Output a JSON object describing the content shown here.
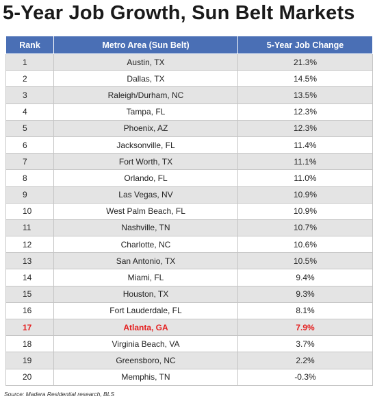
{
  "title": "5-Year Job Growth, Sun Belt Markets",
  "source": "Source: Madera Residential research, BLS",
  "colors": {
    "header_bg": "#4a6fb5",
    "row_shade": "#e4e4e4",
    "highlight": "#e41e1e"
  },
  "chart_data": {
    "type": "table",
    "title": "5-Year Job Growth, Sun Belt Markets",
    "columns": [
      "Rank",
      "Metro Area (Sun Belt)",
      "5-Year Job Change"
    ],
    "highlighted_rank": "17",
    "rows": [
      {
        "rank": "1",
        "metro": "Austin, TX",
        "change": "21.3%"
      },
      {
        "rank": "2",
        "metro": "Dallas, TX",
        "change": "14.5%"
      },
      {
        "rank": "3",
        "metro": "Raleigh/Durham, NC",
        "change": "13.5%"
      },
      {
        "rank": "4",
        "metro": "Tampa, FL",
        "change": "12.3%"
      },
      {
        "rank": "5",
        "metro": "Phoenix, AZ",
        "change": "12.3%"
      },
      {
        "rank": "6",
        "metro": "Jacksonville, FL",
        "change": "11.4%"
      },
      {
        "rank": "7",
        "metro": "Fort Worth, TX",
        "change": "11.1%"
      },
      {
        "rank": "8",
        "metro": "Orlando, FL",
        "change": "11.0%"
      },
      {
        "rank": "9",
        "metro": "Las Vegas, NV",
        "change": "10.9%"
      },
      {
        "rank": "10",
        "metro": "West Palm Beach, FL",
        "change": "10.9%"
      },
      {
        "rank": "11",
        "metro": "Nashville, TN",
        "change": "10.7%"
      },
      {
        "rank": "12",
        "metro": "Charlotte, NC",
        "change": "10.6%"
      },
      {
        "rank": "13",
        "metro": "San Antonio, TX",
        "change": "10.5%"
      },
      {
        "rank": "14",
        "metro": "Miami, FL",
        "change": "9.4%"
      },
      {
        "rank": "15",
        "metro": "Houston, TX",
        "change": "9.3%"
      },
      {
        "rank": "16",
        "metro": "Fort Lauderdale, FL",
        "change": "8.1%"
      },
      {
        "rank": "17",
        "metro": "Atlanta, GA",
        "change": "7.9%"
      },
      {
        "rank": "18",
        "metro": "Virginia Beach, VA",
        "change": "3.7%"
      },
      {
        "rank": "19",
        "metro": "Greensboro, NC",
        "change": "2.2%"
      },
      {
        "rank": "20",
        "metro": "Memphis, TN",
        "change": "-0.3%"
      }
    ]
  }
}
